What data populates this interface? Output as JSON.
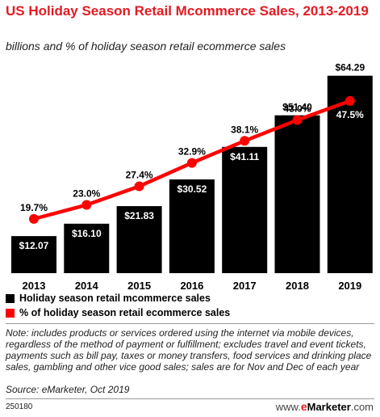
{
  "title": "US Holiday Season Retail Mcommerce Sales, 2013-2019",
  "subtitle": "billions and % of holiday season retail ecommerce sales",
  "chart_data": {
    "type": "bar",
    "categories": [
      "2013",
      "2014",
      "2015",
      "2016",
      "2017",
      "2018",
      "2019"
    ],
    "series": [
      {
        "name": "Holiday season retail mcommerce sales",
        "type": "bar",
        "values": [
          12.07,
          16.1,
          21.83,
          30.52,
          41.11,
          51.4,
          64.29
        ],
        "labels": [
          "$12.07",
          "$16.10",
          "$21.83",
          "$30.52",
          "$41.11",
          "$51.40",
          "$64.29"
        ],
        "color": "#000000"
      },
      {
        "name": "% of holiday season retail ecommerce sales",
        "type": "line",
        "values": [
          19.7,
          23.0,
          27.4,
          32.9,
          38.1,
          43.0,
          47.5
        ],
        "labels": [
          "19.7%",
          "23.0%",
          "27.4%",
          "32.9%",
          "38.1%",
          "43.0%",
          "47.5%"
        ],
        "color": "#ff0000"
      }
    ],
    "ylim": [
      0,
      65
    ],
    "grid": false,
    "legend": "bottom"
  },
  "legend": {
    "bar_label": "Holiday season retail mcommerce sales",
    "line_label": "% of holiday season retail ecommerce sales"
  },
  "note": "Note: includes products or services ordered using the internet via mobile devices, regardless of the method of payment or fulfillment; excludes travel and event tickets, payments such as bill pay, taxes or money transfers, food services and drinking place sales, gambling and other vice good sales; sales are for Nov and Dec of each year",
  "source": "Source: eMarketer, Oct 2019",
  "chart_id": "250180",
  "brand": {
    "prefix": "www.",
    "e": "e",
    "name": "Marketer",
    "suffix": ".com"
  }
}
